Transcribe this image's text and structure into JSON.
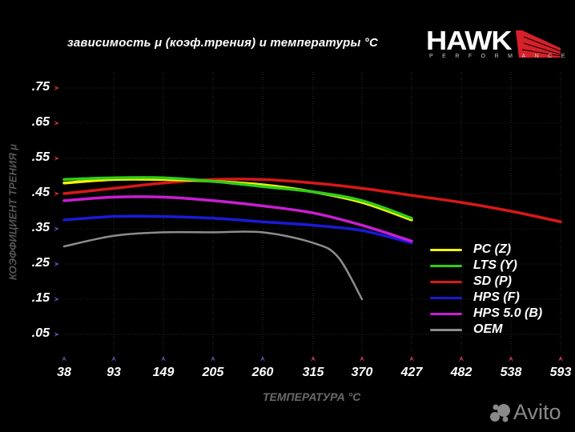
{
  "header": {
    "title": "зависимость μ (коэф.трения) и температуры °С",
    "brand": "HAWK",
    "brand_sub": "PERFORMANCE"
  },
  "watermark": "Avito",
  "colors": {
    "background": "#000000",
    "pc": "#f2f20a",
    "lts": "#2ecc1a",
    "sd": "#d81818",
    "hps": "#1a1ad8",
    "hps50": "#c81ed2",
    "oem": "#8c8c8c",
    "axis_left": "#c83232",
    "axis_bottom": "#5a3aa0"
  },
  "chart_data": {
    "type": "line",
    "title": "зависимость μ (коэф.трения) и температуры °С",
    "xlabel": "ТЕМПЕРАТУРА °С",
    "ylabel": "КОЭФФИЦИЕНТ ТРЕНИЯ μ",
    "x": [
      38,
      93,
      149,
      205,
      260,
      315,
      370,
      427,
      482,
      538,
      593
    ],
    "x_tick_labels": [
      "38",
      "93",
      "149",
      "205",
      "260",
      "315",
      "370",
      "427",
      "482",
      "538",
      "593"
    ],
    "y_tick_labels": [
      ".75",
      ".65",
      ".55",
      ".45",
      ".35",
      ".25",
      ".15",
      ".05"
    ],
    "y_ticks": [
      0.75,
      0.65,
      0.55,
      0.45,
      0.35,
      0.25,
      0.15,
      0.05
    ],
    "ylim": [
      0.0,
      0.8
    ],
    "grid": true,
    "legend_position": "lower right",
    "series": [
      {
        "name": "PC (Z)",
        "color": "#f2f20a",
        "x": [
          38,
          93,
          149,
          205,
          260,
          315,
          370,
          427
        ],
        "values": [
          0.48,
          0.49,
          0.49,
          0.485,
          0.475,
          0.455,
          0.425,
          0.375
        ]
      },
      {
        "name": "LTS (Y)",
        "color": "#2ecc1a",
        "x": [
          38,
          93,
          149,
          205,
          260,
          315,
          370,
          427
        ],
        "values": [
          0.49,
          0.495,
          0.495,
          0.485,
          0.47,
          0.455,
          0.43,
          0.38
        ]
      },
      {
        "name": "SD (P)",
        "color": "#d81818",
        "x": [
          38,
          93,
          149,
          205,
          260,
          315,
          370,
          427,
          482,
          538,
          593
        ],
        "values": [
          0.45,
          0.465,
          0.48,
          0.49,
          0.49,
          0.48,
          0.465,
          0.445,
          0.425,
          0.4,
          0.37
        ]
      },
      {
        "name": "HPS (F)",
        "color": "#1a1ad8",
        "x": [
          38,
          93,
          149,
          205,
          260,
          315,
          370,
          427
        ],
        "values": [
          0.375,
          0.385,
          0.385,
          0.38,
          0.37,
          0.36,
          0.345,
          0.31
        ]
      },
      {
        "name": "HPS 5.0 (B)",
        "color": "#c81ed2",
        "x": [
          38,
          93,
          149,
          205,
          260,
          315,
          370,
          427
        ],
        "values": [
          0.43,
          0.44,
          0.44,
          0.43,
          0.415,
          0.395,
          0.36,
          0.315
        ]
      },
      {
        "name": "OEM",
        "color": "#8c8c8c",
        "x": [
          38,
          93,
          149,
          205,
          260,
          315,
          343,
          370
        ],
        "values": [
          0.3,
          0.33,
          0.34,
          0.34,
          0.34,
          0.31,
          0.27,
          0.15
        ]
      }
    ]
  }
}
